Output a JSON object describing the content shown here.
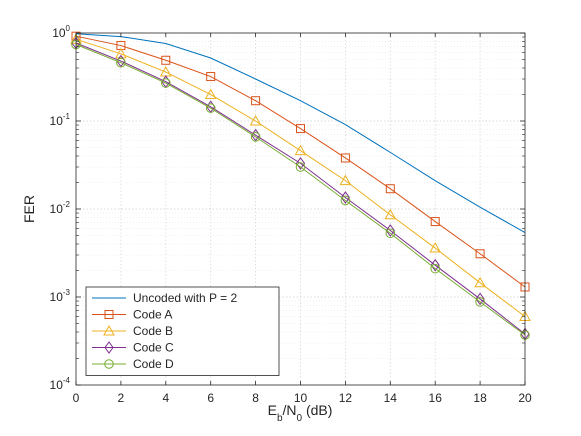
{
  "chart_data": {
    "type": "line",
    "title": "",
    "xlabel": {
      "main": "E",
      "sub1": "b",
      "mid": "/N",
      "sub2": "0",
      "tail": " (dB)"
    },
    "ylabel": "FER",
    "xlim": [
      0,
      20
    ],
    "ylim": [
      0.0001,
      1
    ],
    "yscale": "log",
    "grid": true,
    "minor_grid": true,
    "legend_position": "bottom-left",
    "x_ticks": [
      "0",
      "2",
      "4",
      "6",
      "8",
      "10",
      "12",
      "14",
      "16",
      "18",
      "20"
    ],
    "y_ticks": [
      {
        "base": "10",
        "exp": "-4"
      },
      {
        "base": "10",
        "exp": "-3"
      },
      {
        "base": "10",
        "exp": "-2"
      },
      {
        "base": "10",
        "exp": "-1"
      },
      {
        "base": "10",
        "exp": "0"
      }
    ],
    "x": [
      0,
      2,
      4,
      6,
      8,
      10,
      12,
      14,
      16,
      18,
      20
    ],
    "series": [
      {
        "name": "Uncoded with P = 2",
        "color": "#0072BD",
        "marker": "none",
        "values": [
          0.98,
          0.91,
          0.76,
          0.52,
          0.3,
          0.17,
          0.091,
          0.044,
          0.021,
          0.0105,
          0.0054
        ]
      },
      {
        "name": "Code A",
        "color": "#D95319",
        "marker": "square",
        "values": [
          0.92,
          0.72,
          0.49,
          0.32,
          0.17,
          0.082,
          0.038,
          0.017,
          0.0072,
          0.0031,
          0.0013
        ]
      },
      {
        "name": "Code B",
        "color": "#EDB120",
        "marker": "triangle",
        "values": [
          0.85,
          0.58,
          0.36,
          0.2,
          0.1,
          0.046,
          0.021,
          0.0086,
          0.0036,
          0.00145,
          0.0006
        ]
      },
      {
        "name": "Code C",
        "color": "#7E2F8E",
        "marker": "diamond",
        "values": [
          0.77,
          0.48,
          0.28,
          0.145,
          0.069,
          0.033,
          0.0135,
          0.0057,
          0.0023,
          0.00095,
          0.00038
        ]
      },
      {
        "name": "Code D",
        "color": "#77AC30",
        "marker": "circle",
        "values": [
          0.74,
          0.46,
          0.27,
          0.14,
          0.066,
          0.03,
          0.0125,
          0.0053,
          0.0021,
          0.00088,
          0.00037
        ]
      }
    ]
  }
}
